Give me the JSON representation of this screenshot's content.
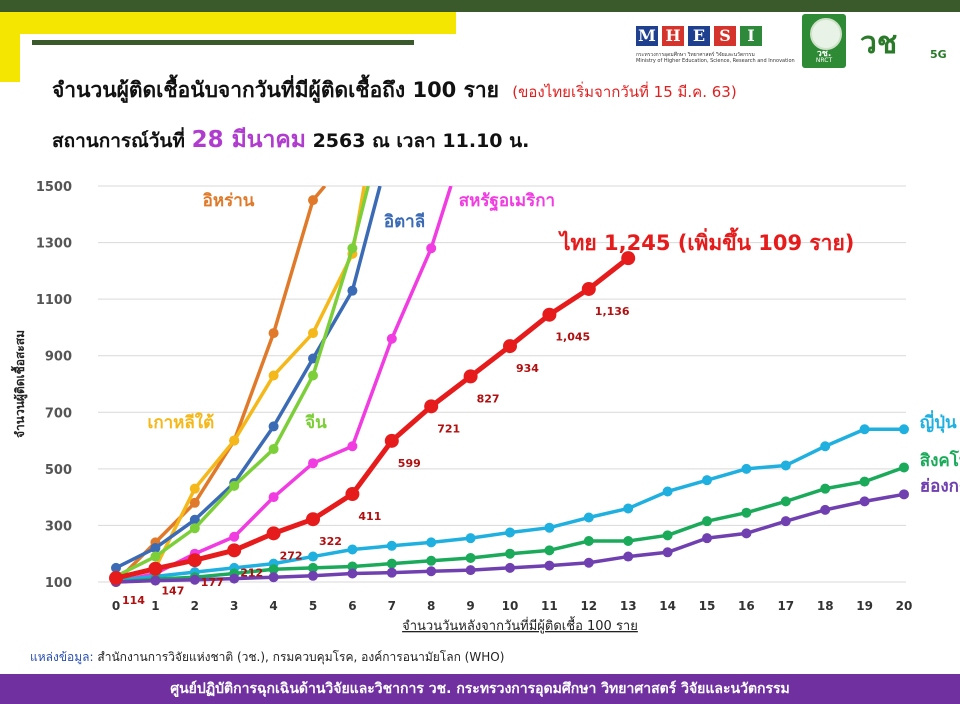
{
  "header": {
    "title": "จำนวนผู้ติดเชื้อนับจากวันที่มีผู้ติดเชื้อถึง 100 ราย",
    "subtitle": "(ของไทยเริ่มจากวันที่ 15 มี.ค. 63)",
    "status_prefix": "สถานการณ์วันที่",
    "status_date": "28 มีนาคม",
    "status_suffix": "2563 ณ เวลา 11.10 น."
  },
  "logos": {
    "mhesi_letters": [
      "M",
      "H",
      "E",
      "S",
      "I"
    ],
    "mhesi_colors": [
      "#1f3f8f",
      "#d4342b",
      "#1f3f8f",
      "#d4342b",
      "#2e8a3a"
    ],
    "mhesi_sub": "กระทรวงการอุดมศึกษา วิทยาศาสตร์ วิจัยและนวัตกรรม",
    "mhesi_sub_en": "Ministry of Higher Education, Science, Research and Innovation",
    "nrct_thai": "วช.",
    "nrct_en": "NRCT",
    "logo_5g_thai": "วช",
    "logo_5g_tag": "5G"
  },
  "source": {
    "label": "แหล่งข้อมูล:",
    "text": "สำนักงานการวิจัยแห่งชาติ (วช.), กรมควบคุมโรค, องค์การอนามัยโลก (WHO)"
  },
  "footer": {
    "text": "ศูนย์ปฏิบัติการฉุกเฉินด้านวิจัยและวิชาการ   วช.   กระทรวงการอุดมศึกษา วิทยาศาสตร์ วิจัยและนวัตกรรม"
  },
  "chart_data": {
    "type": "line",
    "xlabel": "จำนวนวันหลังจากวันที่มีผู้ติดเชื้อ 100 ราย",
    "ylabel": "จำนวนผู้ติดเชื้อสะสม",
    "xlim": [
      0,
      20
    ],
    "ylim": [
      100,
      1500
    ],
    "xticks": [
      0,
      1,
      2,
      3,
      4,
      5,
      6,
      7,
      8,
      9,
      10,
      11,
      12,
      13,
      14,
      15,
      16,
      17,
      18,
      19,
      20
    ],
    "yticks": [
      100,
      300,
      500,
      700,
      900,
      1100,
      1300,
      1500
    ],
    "grid": true,
    "highlight_label": "ไทย  1,245 (เพิ่มขึ้น 109 ราย)",
    "series": [
      {
        "name": "อิหร่าน",
        "color": "#e07a2a",
        "x": [
          0,
          1,
          2,
          3,
          4,
          5,
          5.3
        ],
        "y": [
          100,
          240,
          380,
          600,
          980,
          1450,
          1500
        ],
        "label_day": 2.2,
        "label_value": 1430
      },
      {
        "name": "เกาหลีใต้",
        "color": "#f5b81a",
        "x": [
          0,
          1,
          2,
          3,
          4,
          5,
          6,
          6.3
        ],
        "y": [
          110,
          150,
          430,
          600,
          830,
          980,
          1260,
          1500
        ],
        "label_day": 0.8,
        "label_value": 645
      },
      {
        "name": "อิตาลี",
        "color": "#3b6bb5",
        "x": [
          0,
          1,
          2,
          3,
          4,
          5,
          6,
          6.7
        ],
        "y": [
          150,
          220,
          320,
          450,
          650,
          890,
          1130,
          1500
        ],
        "label_day": 6.8,
        "label_value": 1355
      },
      {
        "name": "จีน",
        "color": "#7dcf3a",
        "x": [
          0,
          1,
          2,
          3,
          4,
          5,
          6,
          6.4
        ],
        "y": [
          120,
          190,
          290,
          440,
          570,
          830,
          1280,
          1500
        ],
        "label_day": 4.8,
        "label_value": 645
      },
      {
        "name": "สหรัฐอเมริกา",
        "color": "#f03ce0",
        "x": [
          0,
          1,
          2,
          3,
          4,
          5,
          6,
          7,
          8,
          8.5
        ],
        "y": [
          100,
          130,
          200,
          260,
          400,
          520,
          580,
          960,
          1280,
          1500
        ],
        "label_day": 8.7,
        "label_value": 1430
      },
      {
        "name": "ญี่ปุ่น",
        "color": "#1fb0e0",
        "x": [
          0,
          1,
          2,
          3,
          4,
          5,
          6,
          7,
          8,
          9,
          10,
          11,
          12,
          13,
          14,
          15,
          16,
          17,
          18,
          19,
          20
        ],
        "y": [
          105,
          120,
          135,
          150,
          165,
          190,
          215,
          228,
          240,
          255,
          275,
          292,
          328,
          360,
          420,
          460,
          500,
          512,
          580,
          640,
          640
        ],
        "label_day": 20.4,
        "label_value": 645
      },
      {
        "name": "สิงคโปร์",
        "color": "#1aaa5a",
        "x": [
          0,
          1,
          2,
          3,
          4,
          5,
          6,
          7,
          8,
          9,
          10,
          11,
          12,
          13,
          14,
          15,
          16,
          17,
          18,
          19,
          20
        ],
        "y": [
          100,
          110,
          117,
          130,
          145,
          150,
          155,
          165,
          175,
          185,
          200,
          212,
          245,
          245,
          265,
          315,
          345,
          385,
          430,
          455,
          505
        ],
        "label_day": 20.4,
        "label_value": 510
      },
      {
        "name": "ฮ่องกง",
        "color": "#7040b0",
        "x": [
          0,
          1,
          2,
          3,
          4,
          5,
          6,
          7,
          8,
          9,
          10,
          11,
          12,
          13,
          14,
          15,
          16,
          17,
          18,
          19,
          20
        ],
        "y": [
          100,
          105,
          108,
          112,
          117,
          122,
          130,
          133,
          138,
          142,
          150,
          158,
          168,
          190,
          205,
          255,
          272,
          315,
          355,
          385,
          410
        ],
        "label_day": 20.4,
        "label_value": 420
      },
      {
        "name": "ไทย",
        "color": "#e61b1b",
        "highlight": true,
        "x": [
          0,
          1,
          2,
          3,
          4,
          5,
          6,
          7,
          8,
          9,
          10,
          11,
          12,
          13
        ],
        "y": [
          114,
          147,
          177,
          212,
          272,
          322,
          411,
          599,
          721,
          827,
          934,
          1045,
          1136,
          1245
        ],
        "labels": [
          "114",
          "147",
          "177",
          "212",
          "272",
          "322",
          "411",
          "599",
          "721",
          "827",
          "934",
          "1,045",
          "1,136",
          ""
        ]
      }
    ]
  }
}
